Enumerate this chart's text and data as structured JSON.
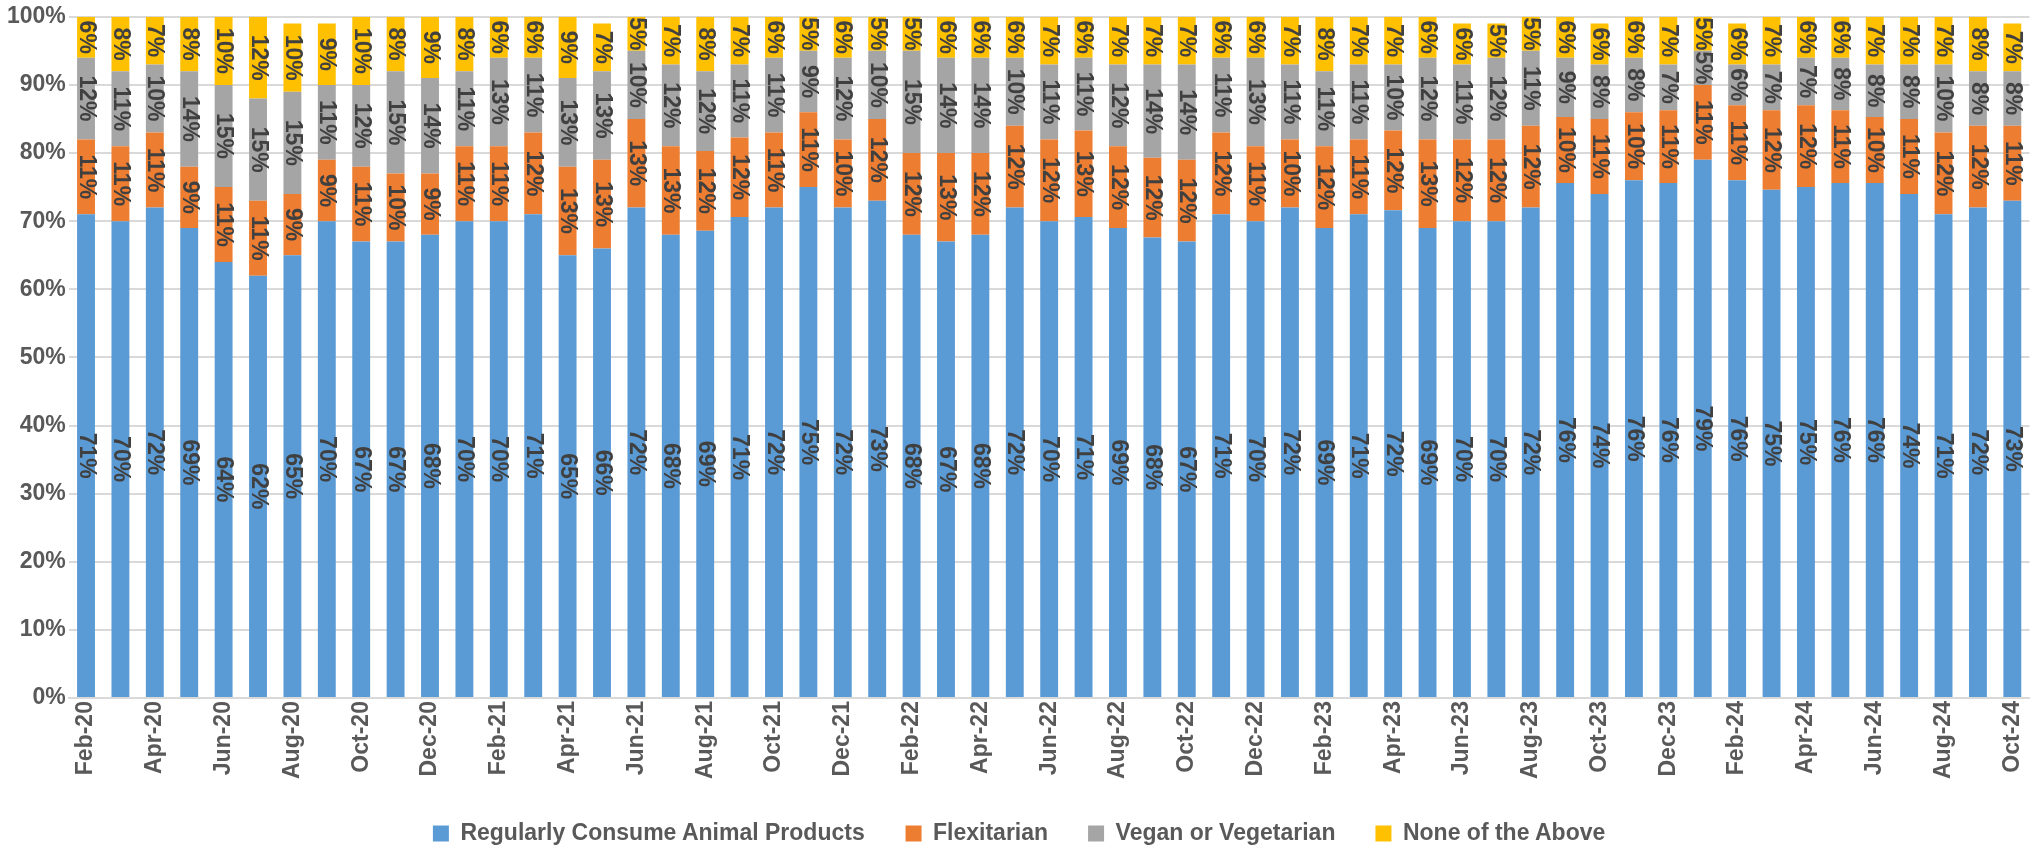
{
  "chart_data": {
    "type": "bar",
    "stacked": true,
    "data_labels": false,
    "grid": "y",
    "legend": "bottom",
    "categories": [
      "Feb-20",
      null,
      "Apr-20",
      null,
      "Jun-20",
      null,
      "Aug-20",
      null,
      "Oct-20",
      null,
      "Dec-20",
      null,
      "Feb-21",
      null,
      "Apr-21",
      null,
      "Jun-21",
      null,
      "Aug-21",
      null,
      "Oct-21",
      null,
      "Dec-21",
      null,
      "Feb-22",
      null,
      "Apr-22",
      null,
      "Jun-22",
      null,
      "Aug-22",
      null,
      "Oct-22",
      null,
      "Dec-22",
      null,
      "Feb-23",
      null,
      "Apr-23",
      null,
      "Jun-23",
      null,
      "Aug-23",
      null,
      "Oct-23",
      null,
      "Dec-23",
      null,
      "Feb-24",
      null,
      "Apr-24",
      null,
      "Jun-24",
      null,
      "Aug-24",
      null,
      "Oct-24"
    ],
    "ylim": [
      0,
      100
    ],
    "yticks": [
      {
        "value": 0,
        "label": "0%"
      },
      {
        "value": 10,
        "label": "10%"
      },
      {
        "value": 20,
        "label": "20%"
      },
      {
        "value": 30,
        "label": "30%"
      },
      {
        "value": 40,
        "label": "40%"
      },
      {
        "value": 50,
        "label": "50%"
      },
      {
        "value": 60,
        "label": "60%"
      },
      {
        "value": 70,
        "label": "70%"
      },
      {
        "value": 80,
        "label": "80%"
      },
      {
        "value": 90,
        "label": "90%"
      },
      {
        "value": 100,
        "label": "100%"
      }
    ],
    "series": [
      {
        "name": "Regularly Consume Animal Products",
        "color": "#5b9bd5",
        "values": [
          71,
          70,
          72,
          69,
          64,
          62,
          65,
          70,
          67,
          67,
          68,
          70,
          70,
          71,
          65,
          66,
          72,
          68,
          68.6,
          70.6,
          72,
          75,
          72,
          73,
          68,
          67,
          68,
          72,
          70,
          70.6,
          69,
          67.6,
          67,
          71,
          70,
          72,
          69,
          71,
          71.6,
          69,
          70,
          70,
          72,
          75.6,
          74,
          76,
          75.6,
          79,
          76,
          74.6,
          75,
          75.6,
          75.6,
          74,
          71,
          72,
          73
        ],
        "value_labels": [
          "71%",
          "70%",
          "72%",
          "69%",
          "64%",
          "62%",
          "65%",
          "70%",
          "67%",
          "67%",
          "68%",
          "70%",
          "70%",
          "71%",
          "65%",
          "66%",
          "72%",
          "68%",
          "69%",
          "71%",
          "72%",
          "75%",
          "72%",
          "73%",
          "68%",
          "67%",
          "68%",
          "72%",
          "70%",
          "71%",
          "69%",
          "68%",
          "67%",
          "71%",
          "70%",
          "72%",
          "69%",
          "71%",
          "72%",
          "69%",
          "70%",
          "70%",
          "72%",
          "76%",
          "74%",
          "76%",
          "76%",
          "79%",
          "76%",
          "75%",
          "75%",
          "76%",
          "76%",
          "74%",
          "71%",
          "72%",
          "73%"
        ]
      },
      {
        "name": "Flexitarian",
        "color": "#ed7d31",
        "values": [
          11,
          11,
          11,
          9,
          11,
          11,
          9,
          9,
          11,
          10,
          9,
          11,
          11,
          12,
          13,
          13,
          13,
          13,
          11.7,
          11.7,
          11,
          11,
          10,
          12,
          12,
          13,
          12,
          12,
          12,
          12.7,
          12,
          11.7,
          12,
          12,
          11,
          10,
          12,
          11,
          11.7,
          13,
          12,
          12,
          12,
          9.7,
          11,
          10,
          10.7,
          11,
          11,
          11.7,
          12,
          10.7,
          9.7,
          11,
          12,
          12,
          11
        ],
        "value_labels": [
          "11%",
          "11%",
          "11%",
          "9%",
          "11%",
          "11%",
          "9%",
          "9%",
          "11%",
          "10%",
          "9%",
          "11%",
          "11%",
          "12%",
          "13%",
          "13%",
          "13%",
          "13%",
          "12%",
          "12%",
          "11%",
          "11%",
          "10%",
          "12%",
          "12%",
          "13%",
          "12%",
          "12%",
          "12%",
          "13%",
          "12%",
          "12%",
          "12%",
          "12%",
          "11%",
          "10%",
          "12%",
          "11%",
          "12%",
          "13%",
          "12%",
          "12%",
          "12%",
          "10%",
          "11%",
          "10%",
          "11%",
          "11%",
          "11%",
          "12%",
          "12%",
          "11%",
          "10%",
          "11%",
          "12%",
          "12%",
          "11%"
        ]
      },
      {
        "name": "Vegan or Vegetarian",
        "color": "#a5a5a5",
        "values": [
          12,
          11,
          10,
          14,
          15,
          15,
          15,
          11,
          12,
          15,
          14,
          11,
          13,
          11,
          13,
          13,
          10,
          12,
          11.7,
          10.7,
          11,
          9,
          12,
          10,
          15,
          14,
          14,
          10,
          11,
          10.7,
          12,
          13.7,
          14,
          11,
          13,
          11,
          11,
          11,
          9.7,
          12,
          11,
          12,
          11,
          8.7,
          8,
          8,
          6.7,
          5,
          6,
          6.7,
          7,
          7.7,
          7.7,
          8,
          10,
          8,
          8
        ],
        "value_labels": [
          "12%",
          "11%",
          "10%",
          "14%",
          "15%",
          "15%",
          "15%",
          "11%",
          "12%",
          "15%",
          "14%",
          "11%",
          "13%",
          "11%",
          "13%",
          "13%",
          "10%",
          "12%",
          "12%",
          "11%",
          "11%",
          "9%",
          "12%",
          "10%",
          "15%",
          "14%",
          "14%",
          "10%",
          "11%",
          "11%",
          "12%",
          "14%",
          "14%",
          "11%",
          "13%",
          "11%",
          "11%",
          "11%",
          "10%",
          "12%",
          "11%",
          "12%",
          "11%",
          "9%",
          "8%",
          "8%",
          "7%",
          "5%",
          "6%",
          "7%",
          "7%",
          "8%",
          "8%",
          "8%",
          "10%",
          "8%",
          "8%"
        ]
      },
      {
        "name": "None of the Above",
        "color": "#ffc000",
        "values": [
          6,
          8,
          7,
          8,
          10,
          12,
          10,
          9,
          10,
          8,
          9,
          8,
          6,
          6,
          9,
          7,
          5,
          7,
          8,
          7,
          6,
          5,
          6,
          5,
          5,
          6,
          6,
          6,
          7,
          6,
          7,
          7,
          7,
          6,
          6,
          7,
          8,
          7,
          7,
          6,
          6,
          5,
          5,
          6,
          6,
          6,
          7,
          5,
          6,
          7,
          6,
          6,
          7,
          7,
          7,
          8,
          7
        ],
        "value_labels": [
          "6%",
          "8%",
          "7%",
          "8%",
          "10%",
          "12%",
          "10%",
          "9%",
          "10%",
          "8%",
          "9%",
          "8%",
          "6%",
          "6%",
          "9%",
          "7%",
          "5%",
          "7%",
          "8%",
          "7%",
          "6%",
          "5%",
          "6%",
          "5%",
          "5%",
          "6%",
          "6%",
          "6%",
          "7%",
          "6%",
          "7%",
          "7%",
          "7%",
          "6%",
          "6%",
          "7%",
          "8%",
          "7%",
          "7%",
          "6%",
          "6%",
          "5%",
          "5%",
          "6%",
          "6%",
          "6%",
          "7%",
          "5%",
          "6%",
          "7%",
          "6%",
          "6%",
          "7%",
          "7%",
          "7%",
          "8%",
          "7%"
        ]
      }
    ]
  }
}
